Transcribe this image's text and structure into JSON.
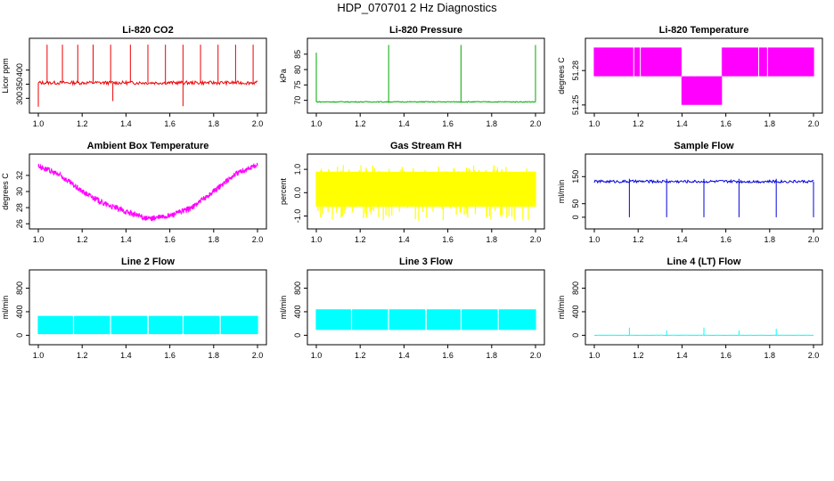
{
  "page": {
    "title": "HDP_070701  2 Hz Diagnostics"
  },
  "chart_data": [
    {
      "type": "line",
      "title": "Li-820 CO2",
      "ylabel": "Licor ppm",
      "color": "#ee0000",
      "xlim": [
        1.0,
        2.0
      ],
      "ylim": [
        260,
        500
      ],
      "x_ticks": [
        "1.0",
        "1.2",
        "1.4",
        "1.6",
        "1.8",
        "2.0"
      ],
      "y_ticks": [
        "300",
        "350",
        "400"
      ],
      "series": [
        {
          "baseline": 355,
          "noise": 6,
          "spikes_up": [
            {
              "x": 1.04,
              "y": 490
            },
            {
              "x": 1.11,
              "y": 490
            },
            {
              "x": 1.18,
              "y": 490
            },
            {
              "x": 1.25,
              "y": 490
            },
            {
              "x": 1.33,
              "y": 490
            },
            {
              "x": 1.42,
              "y": 490
            },
            {
              "x": 1.5,
              "y": 490
            },
            {
              "x": 1.58,
              "y": 490
            },
            {
              "x": 1.66,
              "y": 490
            },
            {
              "x": 1.74,
              "y": 490
            },
            {
              "x": 1.82,
              "y": 490
            },
            {
              "x": 1.9,
              "y": 490
            },
            {
              "x": 1.98,
              "y": 490
            }
          ],
          "spikes_down": [
            {
              "x": 1.0,
              "y": 270
            },
            {
              "x": 1.34,
              "y": 290
            },
            {
              "x": 1.66,
              "y": 272
            }
          ]
        }
      ]
    },
    {
      "type": "line",
      "title": "Li-820 Pressure",
      "ylabel": "kPa",
      "color": "#00aa00",
      "xlim": [
        1.0,
        2.0
      ],
      "ylim": [
        67,
        89
      ],
      "x_ticks": [
        "1.0",
        "1.2",
        "1.4",
        "1.6",
        "1.8",
        "2.0"
      ],
      "y_ticks": [
        "70",
        "75",
        "80",
        "85"
      ],
      "series": [
        {
          "baseline": 69.5,
          "noise": 0.15,
          "spikes_up": [
            {
              "x": 1.0,
              "y": 85.5
            },
            {
              "x": 1.33,
              "y": 88
            },
            {
              "x": 1.66,
              "y": 88
            },
            {
              "x": 2.0,
              "y": 88
            }
          ],
          "spikes_down": []
        }
      ]
    },
    {
      "type": "line",
      "title": "Li-820 Temperature",
      "ylabel": "degrees C",
      "color": "#ff00ff",
      "xlim": [
        1.0,
        2.0
      ],
      "ylim": [
        51.246,
        51.305
      ],
      "x_ticks": [
        "1.0",
        "1.2",
        "1.4",
        "1.6",
        "1.8",
        "2.0"
      ],
      "y_ticks": [
        "51.25",
        "51.28"
      ],
      "series": [
        {
          "quantized": true,
          "levels": [
            51.25,
            51.275,
            51.3
          ],
          "segments": [
            [
              1.0,
              1.18,
              51.275,
              51.3
            ],
            [
              1.18,
              1.4,
              51.275,
              51.3
            ],
            [
              1.4,
              1.58,
              51.25,
              51.275
            ],
            [
              1.58,
              1.75,
              51.275,
              51.3
            ],
            [
              1.75,
              2.0,
              51.275,
              51.3
            ]
          ]
        }
      ]
    },
    {
      "type": "line",
      "title": "Ambient Box Temperature",
      "ylabel": "degrees C",
      "color": "#ff00ff",
      "xlim": [
        1.0,
        2.0
      ],
      "ylim": [
        25.8,
        34.2
      ],
      "x_ticks": [
        "1.0",
        "1.2",
        "1.4",
        "1.6",
        "1.8",
        "2.0"
      ],
      "y_ticks": [
        "26",
        "28",
        "30",
        "32"
      ],
      "series": [
        {
          "band": 0.7,
          "points": [
            {
              "x": 1.0,
              "y": 33.2
            },
            {
              "x": 1.1,
              "y": 32.0
            },
            {
              "x": 1.2,
              "y": 30.0
            },
            {
              "x": 1.3,
              "y": 28.5
            },
            {
              "x": 1.4,
              "y": 27.5
            },
            {
              "x": 1.5,
              "y": 26.6
            },
            {
              "x": 1.6,
              "y": 27.0
            },
            {
              "x": 1.7,
              "y": 28.0
            },
            {
              "x": 1.8,
              "y": 30.0
            },
            {
              "x": 1.9,
              "y": 32.2
            },
            {
              "x": 2.0,
              "y": 33.3
            }
          ]
        }
      ]
    },
    {
      "type": "line",
      "title": "Gas Stream RH",
      "ylabel": "percent",
      "color": "#ffff00",
      "xlim": [
        1.0,
        2.0
      ],
      "ylim": [
        -1.4,
        1.5
      ],
      "x_ticks": [
        "1.0",
        "1.2",
        "1.4",
        "1.6",
        "1.8",
        "2.0"
      ],
      "y_ticks": [
        "-1.0",
        "0.0",
        "1.0"
      ],
      "series": [
        {
          "band_low": -0.6,
          "band_high": 0.9,
          "spike_low": -1.2,
          "spike_high": 1.2
        }
      ]
    },
    {
      "type": "line",
      "title": "Sample Flow",
      "ylabel": "ml/min",
      "color": "#0000dd",
      "xlim": [
        1.0,
        2.0
      ],
      "ylim": [
        -30,
        220
      ],
      "x_ticks": [
        "1.0",
        "1.2",
        "1.4",
        "1.6",
        "1.8",
        "2.0"
      ],
      "y_ticks": [
        "0",
        "50",
        "150"
      ],
      "series": [
        {
          "baseline": 132,
          "noise": 5,
          "spikes_up": [
            {
              "x": 1.16,
              "y": 142
            },
            {
              "x": 1.33,
              "y": 142
            },
            {
              "x": 1.5,
              "y": 142
            },
            {
              "x": 1.66,
              "y": 142
            },
            {
              "x": 1.83,
              "y": 142
            }
          ],
          "spikes_down": [
            {
              "x": 1.16,
              "y": 0
            },
            {
              "x": 1.33,
              "y": 0
            },
            {
              "x": 1.5,
              "y": 0
            },
            {
              "x": 1.66,
              "y": 0
            },
            {
              "x": 1.83,
              "y": 0
            },
            {
              "x": 2.0,
              "y": 0
            }
          ]
        }
      ]
    },
    {
      "type": "line",
      "title": "Line 2 Flow",
      "ylabel": "ml/min",
      "color": "#00ffff",
      "xlim": [
        1.0,
        2.0
      ],
      "ylim": [
        -100,
        1050
      ],
      "x_ticks": [
        "1.0",
        "1.2",
        "1.4",
        "1.6",
        "1.8",
        "2.0"
      ],
      "y_ticks": [
        "0",
        "400",
        "800"
      ],
      "series": [
        {
          "band_low": 20,
          "band_high": 330,
          "gaps": [
            1.16,
            1.33,
            1.5,
            1.66,
            1.83
          ]
        }
      ]
    },
    {
      "type": "line",
      "title": "Line 3 Flow",
      "ylabel": "ml/min",
      "color": "#00ffff",
      "xlim": [
        1.0,
        2.0
      ],
      "ylim": [
        -100,
        1050
      ],
      "x_ticks": [
        "1.0",
        "1.2",
        "1.4",
        "1.6",
        "1.8",
        "2.0"
      ],
      "y_ticks": [
        "0",
        "400",
        "800"
      ],
      "series": [
        {
          "band_low": 90,
          "band_high": 440,
          "gaps": [
            1.16,
            1.33,
            1.5,
            1.66,
            1.83
          ]
        }
      ]
    },
    {
      "type": "line",
      "title": "Line 4 (LT) Flow",
      "ylabel": "ml/min",
      "color": "#00ffff",
      "xlim": [
        1.0,
        2.0
      ],
      "ylim": [
        -100,
        1050
      ],
      "x_ticks": [
        "1.0",
        "1.2",
        "1.4",
        "1.6",
        "1.8",
        "2.0"
      ],
      "y_ticks": [
        "0",
        "400",
        "800"
      ],
      "series": [
        {
          "baseline": 0,
          "noise": 2,
          "spikes_up": [
            {
              "x": 1.16,
              "y": 130
            },
            {
              "x": 1.33,
              "y": 80
            },
            {
              "x": 1.5,
              "y": 130
            },
            {
              "x": 1.66,
              "y": 80
            },
            {
              "x": 1.83,
              "y": 110
            }
          ],
          "spikes_down": []
        }
      ]
    }
  ]
}
